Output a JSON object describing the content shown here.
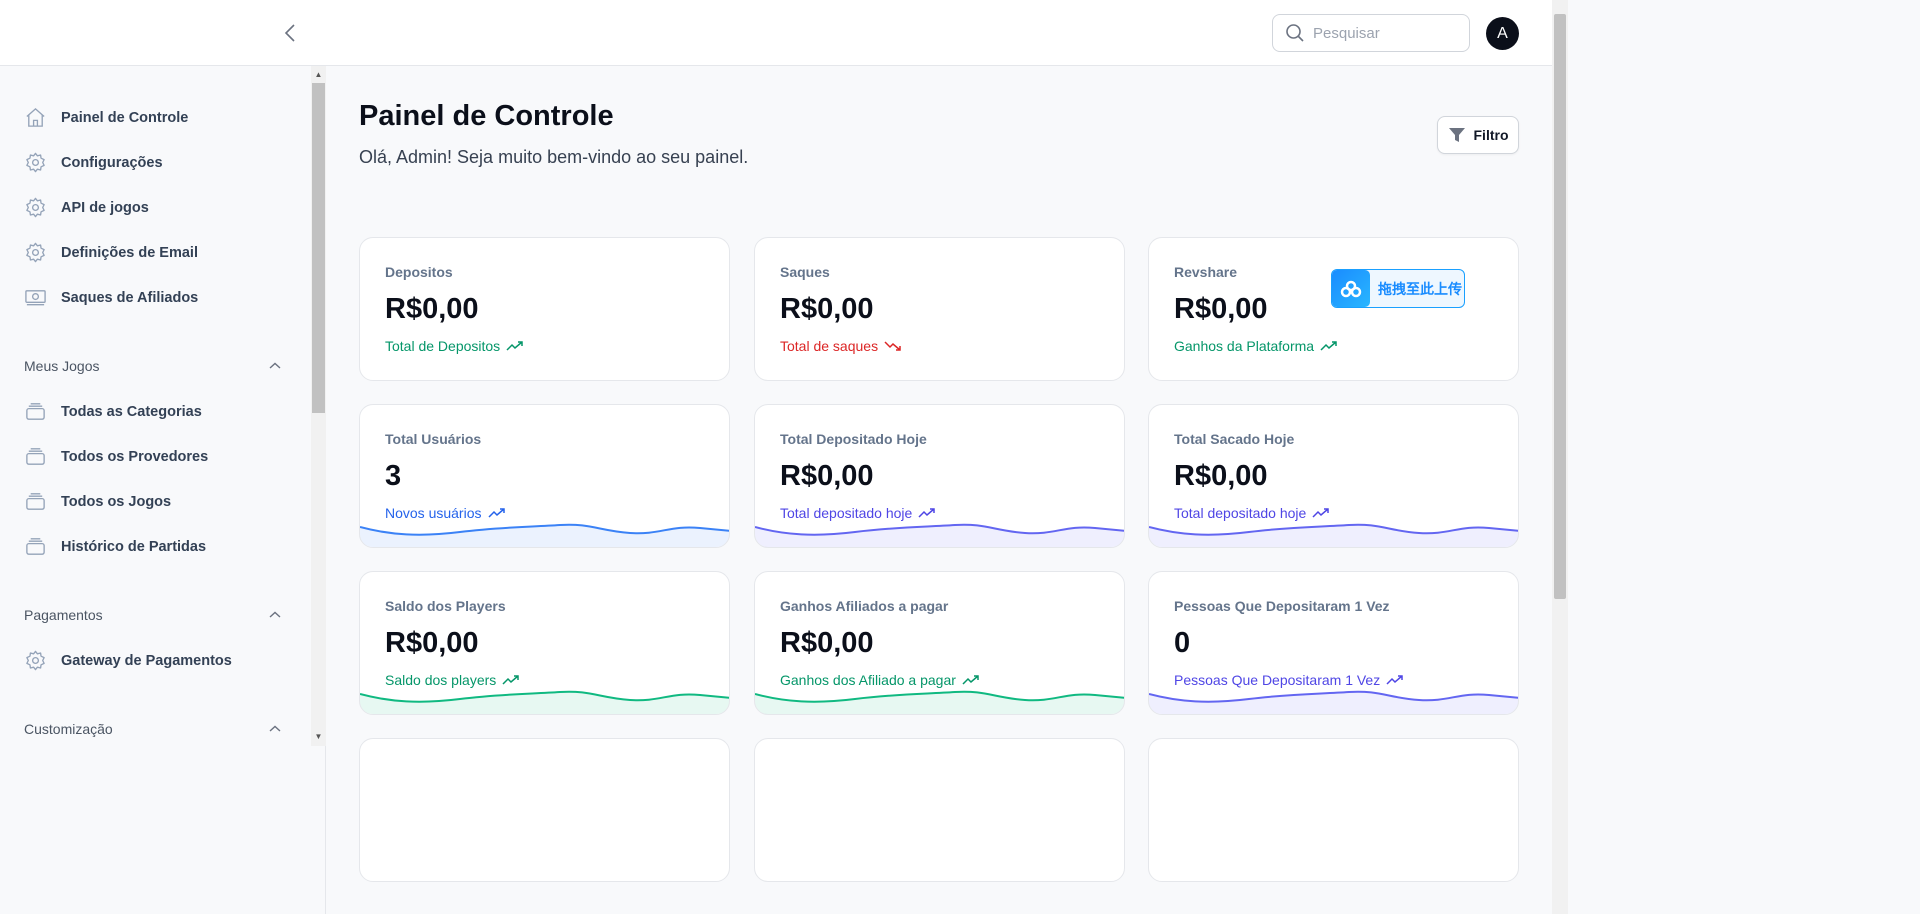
{
  "header": {
    "search_placeholder": "Pesquisar",
    "avatar_initial": "A"
  },
  "sidebar": {
    "items": [
      {
        "label": "Painel de Controle",
        "icon": "home-icon"
      },
      {
        "label": "Configurações",
        "icon": "gear-icon"
      },
      {
        "label": "API de jogos",
        "icon": "gear-icon"
      },
      {
        "label": "Definições de Email",
        "icon": "gear-icon"
      },
      {
        "label": "Saques de Afiliados",
        "icon": "cash-icon"
      }
    ],
    "sections": [
      {
        "title": "Meus Jogos",
        "items": [
          {
            "label": "Todas as Categorias"
          },
          {
            "label": "Todos os Provedores"
          },
          {
            "label": "Todos os Jogos"
          },
          {
            "label": "Histórico de Partidas"
          }
        ]
      },
      {
        "title": "Pagamentos",
        "items": [
          {
            "label": "Gateway de Pagamentos"
          }
        ]
      },
      {
        "title": "Customização",
        "items": []
      }
    ]
  },
  "main": {
    "title": "Painel de Controle",
    "subtitle": "Olá, Admin! Seja muito bem-vindo ao seu painel.",
    "filter_label": "Filtro",
    "upload_badge": "拖拽至此上传",
    "cards": [
      {
        "label": "Depositos",
        "value": "R$0,00",
        "desc": "Total de Depositos",
        "trend": "up",
        "color": "#059669"
      },
      {
        "label": "Saques",
        "value": "R$0,00",
        "desc": "Total de saques",
        "trend": "down",
        "color": "#dc2626"
      },
      {
        "label": "Revshare",
        "value": "R$0,00",
        "desc": "Ganhos da Plataforma",
        "trend": "up",
        "color": "#059669"
      },
      {
        "label": "Total Usuários",
        "value": "3",
        "desc": "Novos usuários",
        "trend": "up",
        "color": "#2563eb",
        "spark": "#3b82f6"
      },
      {
        "label": "Total Depositado Hoje",
        "value": "R$0,00",
        "desc": "Total depositado hoje",
        "trend": "up",
        "color": "#4f46e5",
        "spark": "#6366f1"
      },
      {
        "label": "Total Sacado Hoje",
        "value": "R$0,00",
        "desc": "Total depositado hoje",
        "trend": "up",
        "color": "#4f46e5",
        "spark": "#6366f1"
      },
      {
        "label": "Saldo dos Players",
        "value": "R$0,00",
        "desc": "Saldo dos players",
        "trend": "up",
        "color": "#059669",
        "spark": "#10b981"
      },
      {
        "label": "Ganhos Afiliados a pagar",
        "value": "R$0,00",
        "desc": "Ganhos dos Afiliado a pagar",
        "trend": "up",
        "color": "#059669",
        "spark": "#10b981"
      },
      {
        "label": "Pessoas Que Depositaram 1 Vez",
        "value": "0",
        "desc": "Pessoas Que Depositaram 1 Vez",
        "trend": "up",
        "color": "#4f46e5",
        "spark": "#6366f1"
      }
    ]
  }
}
